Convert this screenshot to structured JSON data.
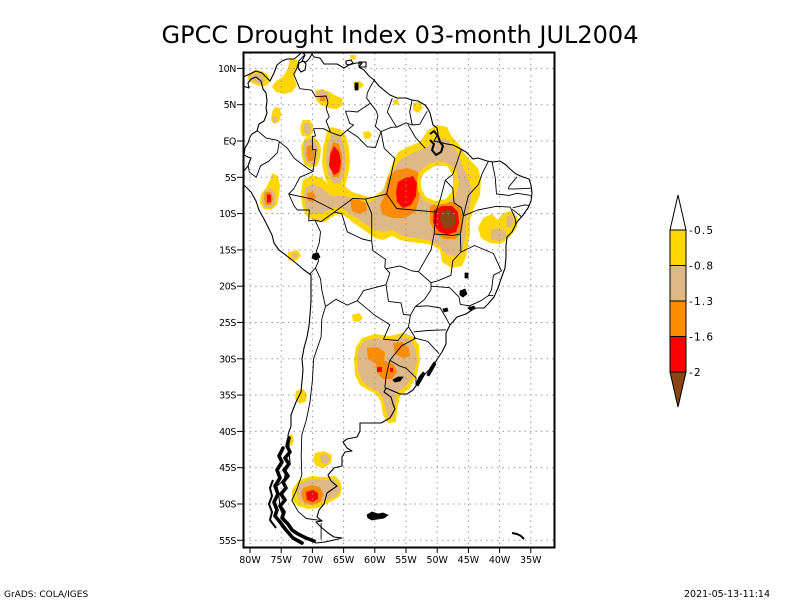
{
  "title": "GPCC Drought Index 03-month JUL2004",
  "map": {
    "variable": "GPCC Drought Index",
    "accumulation": "03-month",
    "period": "JUL2004",
    "x_tick_labels": [
      "80W",
      "75W",
      "70W",
      "65W",
      "60W",
      "55W",
      "50W",
      "45W",
      "40W",
      "35W"
    ],
    "y_tick_labels": [
      "10N",
      "5N",
      "EQ",
      "5S",
      "10S",
      "15S",
      "20S",
      "25S",
      "30S",
      "35S",
      "40S",
      "45S",
      "50S",
      "55S"
    ],
    "grid": true,
    "shaded_areas": [
      {
        "area": "central Brazil (Tocantins/Goias)",
        "lon": -48.5,
        "lat": -10.5,
        "strongest_class": "< -2"
      },
      {
        "area": "southern Para, Brazil",
        "lon": -54.0,
        "lat": -8.0,
        "strongest_class": "-2 to -1.6"
      },
      {
        "area": "western Amazon",
        "lon": -66.0,
        "lat": -3.5,
        "strongest_class": "-2 to -1.6"
      },
      {
        "area": "northern Peru",
        "lon": -77.5,
        "lat": -8.3,
        "strongest_class": "-2 to -1.6"
      },
      {
        "area": "NE Argentina / Uruguay",
        "lon": -58.0,
        "lat": -31.0,
        "strongest_class": "-2 to -1.6"
      },
      {
        "area": "southern Patagonia",
        "lon": -70.5,
        "lat": -49.5,
        "strongest_class": "-2 to -1.6"
      },
      {
        "area": "Rondonia / Mato Grosso band",
        "lon": -60.0,
        "lat": -10.0,
        "strongest_class": "-1.6 to -1.3"
      },
      {
        "area": "eastern Bahia",
        "lon": -38.5,
        "lat": -12.5,
        "strongest_class": "-1.3 to -0.8"
      }
    ]
  },
  "legend": {
    "labels": [
      "-0.5",
      "-0.8",
      "-1.3",
      "-1.6",
      "-2"
    ],
    "colors": [
      "#FFFFFF",
      "#FFD700",
      "#DEB887",
      "#FF8C00",
      "#FF0000",
      "#8B4513"
    ],
    "classes": [
      "> -0.5",
      "-0.8 to -0.5",
      "-1.3 to -0.8",
      "-1.6 to -1.3",
      "-2 to -1.6",
      "< -2"
    ]
  },
  "footer": {
    "left": "GrADS: COLA/IGES",
    "right": "2021-05-13-11:14"
  }
}
